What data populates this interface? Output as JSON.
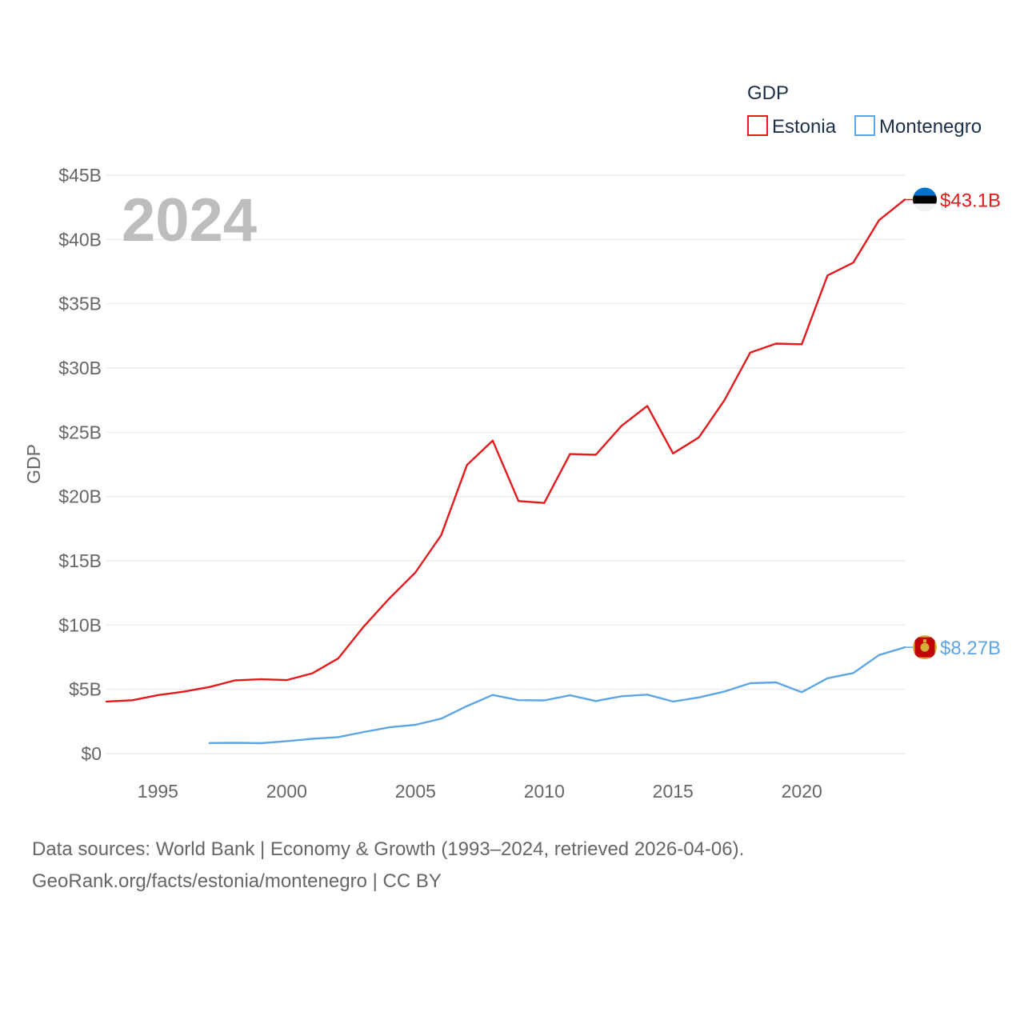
{
  "chart_data": {
    "type": "line",
    "title": "GDP",
    "ylabel": "GDP",
    "xlabel": "",
    "year_label": "2024",
    "xlim": [
      1993,
      2024
    ],
    "ylim": [
      0,
      45
    ],
    "y_ticks": [
      {
        "value": 0,
        "label": "$0"
      },
      {
        "value": 5,
        "label": "$5B"
      },
      {
        "value": 10,
        "label": "$10B"
      },
      {
        "value": 15,
        "label": "$15B"
      },
      {
        "value": 20,
        "label": "$20B"
      },
      {
        "value": 25,
        "label": "$25B"
      },
      {
        "value": 30,
        "label": "$30B"
      },
      {
        "value": 35,
        "label": "$35B"
      },
      {
        "value": 40,
        "label": "$40B"
      },
      {
        "value": 45,
        "label": "$45B"
      }
    ],
    "x_ticks": [
      {
        "value": 1995,
        "label": "1995"
      },
      {
        "value": 2000,
        "label": "2000"
      },
      {
        "value": 2005,
        "label": "2005"
      },
      {
        "value": 2010,
        "label": "2010"
      },
      {
        "value": 2015,
        "label": "2015"
      },
      {
        "value": 2020,
        "label": "2020"
      }
    ],
    "legend": {
      "title": "GDP",
      "position": "top-right"
    },
    "grid": true,
    "series": [
      {
        "name": "Estonia",
        "color": "#e41a1c",
        "end_label": "$43.1B",
        "flag": "estonia-flag",
        "x": [
          1993,
          1994,
          1995,
          1996,
          1997,
          1998,
          1999,
          2000,
          2001,
          2002,
          2003,
          2004,
          2005,
          2006,
          2007,
          2008,
          2009,
          2010,
          2011,
          2012,
          2013,
          2014,
          2015,
          2016,
          2017,
          2018,
          2019,
          2020,
          2021,
          2022,
          2023,
          2024
        ],
        "values": [
          4.05,
          4.15,
          4.55,
          4.82,
          5.18,
          5.7,
          5.78,
          5.72,
          6.25,
          7.4,
          9.9,
          12.1,
          14.1,
          17.0,
          22.45,
          24.35,
          19.65,
          19.5,
          23.3,
          23.25,
          25.5,
          27.05,
          23.35,
          24.6,
          27.5,
          31.2,
          31.9,
          31.85,
          37.2,
          38.2,
          41.5,
          43.1
        ]
      },
      {
        "name": "Montenegro",
        "color": "#5ea5e6",
        "end_label": "$8.27B",
        "flag": "montenegro-flag",
        "x": [
          1997,
          1998,
          1999,
          2000,
          2001,
          2002,
          2003,
          2004,
          2005,
          2006,
          2007,
          2008,
          2009,
          2010,
          2011,
          2012,
          2013,
          2014,
          2015,
          2016,
          2017,
          2018,
          2019,
          2020,
          2021,
          2022,
          2023,
          2024
        ],
        "values": [
          0.82,
          0.84,
          0.81,
          0.97,
          1.15,
          1.28,
          1.68,
          2.05,
          2.24,
          2.72,
          3.7,
          4.56,
          4.16,
          4.14,
          4.54,
          4.09,
          4.46,
          4.59,
          4.05,
          4.37,
          4.83,
          5.48,
          5.54,
          4.78,
          5.86,
          6.27,
          7.67,
          8.27
        ]
      }
    ]
  },
  "source": {
    "line1": "Data sources: World Bank | Economy & Growth (1993–2024, retrieved 2026-04-06).",
    "line2": "GeoRank.org/facts/estonia/montenegro | CC BY"
  }
}
